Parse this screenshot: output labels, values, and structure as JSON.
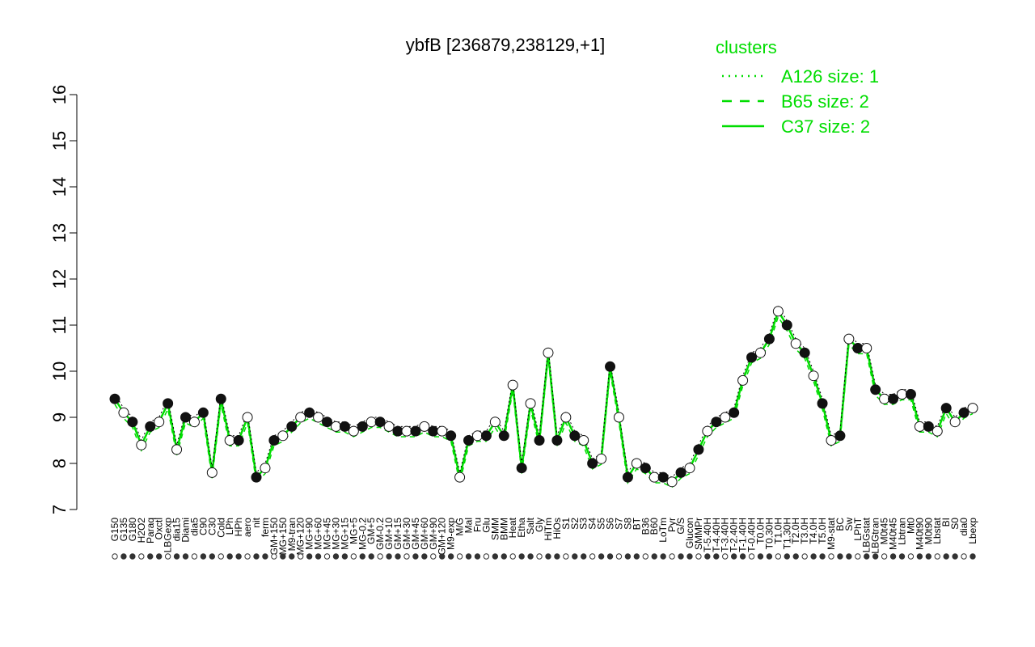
{
  "chart_data": {
    "type": "line",
    "title": "ybfB [236879,238129,+1]",
    "xlabel": "",
    "ylabel": "",
    "ylim": [
      7,
      16
    ],
    "yticks": [
      "7",
      "8",
      "9",
      "10",
      "11",
      "12",
      "13",
      "14",
      "15",
      "16"
    ],
    "grid": false,
    "legend_placement": "top-right",
    "legend": {
      "title": "clusters",
      "entries": [
        {
          "label": "A126 size: 1",
          "style": "dotted"
        },
        {
          "label": "B65 size: 2",
          "style": "dashed"
        },
        {
          "label": "C37 size: 2",
          "style": "solid"
        }
      ]
    },
    "x_tick_labels_upper": [
      "G150",
      "G135",
      "G180",
      "H2O2",
      "Paraq",
      "Oxctl",
      "LBGexp",
      "dia15",
      "Diami",
      "dia5",
      "C90",
      "C30",
      "Cold",
      "LPh",
      "HPh",
      "aero",
      "nit",
      "ferm",
      "GM+150",
      "MG+150",
      "M9-tran",
      "MG+120",
      "MG+90",
      "MG+60",
      "MG+45",
      "MG+30",
      "MG+15",
      "MG+5",
      "MG-0.2",
      "GM+5",
      "GM-0.2",
      "GM+10",
      "GM+15",
      "GM+30",
      "GM+45",
      "GM+60",
      "GM+90",
      "GM+120",
      "M9-exp",
      "M/G",
      "Mal",
      "Fru",
      "Glu",
      "SMM",
      "BMM",
      "Heat",
      "Etha",
      "Salt",
      "Gly",
      "HiTm",
      "HiOs",
      "S1",
      "S2",
      "S3",
      "S4",
      "S5",
      "S6",
      "S7",
      "S8",
      "BT",
      "B36",
      "B60",
      "LoTm",
      "Pyr",
      "G/S",
      "Glucon",
      "SMMPr",
      "T-5.40H",
      "T-4.40H",
      "T-3.40H",
      "T-2.40H",
      "T-1.40H",
      "T-0.40H",
      "T0.0H",
      "T0.30H",
      "T1.0H",
      "T1.30H",
      "T2.0H",
      "T3.0H",
      "T4.0H",
      "T5.0H",
      "M9-stat",
      "BC",
      "Sw",
      "LPhT",
      "LBGstat",
      "LBGtran",
      "M0t45",
      "M40t45",
      "Lbtran",
      "Mt0",
      "M40t90",
      "M0t90",
      "Lbstat",
      "BI",
      "S0",
      "dia0",
      "Lbexp"
    ],
    "values": [
      9.4,
      9.1,
      8.9,
      8.4,
      8.8,
      8.9,
      9.3,
      8.3,
      9.0,
      8.9,
      9.1,
      7.8,
      9.4,
      8.5,
      8.5,
      9.0,
      7.7,
      7.9,
      8.5,
      8.6,
      8.8,
      9.0,
      9.1,
      9.0,
      8.9,
      8.8,
      8.8,
      8.7,
      8.8,
      8.9,
      8.9,
      8.8,
      8.7,
      8.7,
      8.7,
      8.8,
      8.7,
      8.7,
      8.6,
      7.7,
      8.5,
      8.6,
      8.6,
      8.9,
      8.6,
      9.7,
      7.9,
      9.3,
      8.5,
      10.4,
      8.5,
      9.0,
      8.6,
      8.5,
      8.0,
      8.1,
      10.1,
      9.0,
      7.7,
      8.0,
      7.9,
      7.7,
      7.7,
      7.6,
      7.8,
      7.9,
      8.3,
      8.7,
      8.9,
      9.0,
      9.1,
      9.8,
      10.3,
      10.4,
      10.7,
      11.3,
      11.0,
      10.6,
      10.4,
      9.9,
      9.3,
      8.5,
      8.6,
      10.7,
      10.5,
      10.5,
      9.6,
      9.4,
      9.4,
      9.5,
      9.5,
      8.8,
      8.8,
      8.7,
      9.2,
      8.9,
      9.1,
      9.2
    ]
  }
}
